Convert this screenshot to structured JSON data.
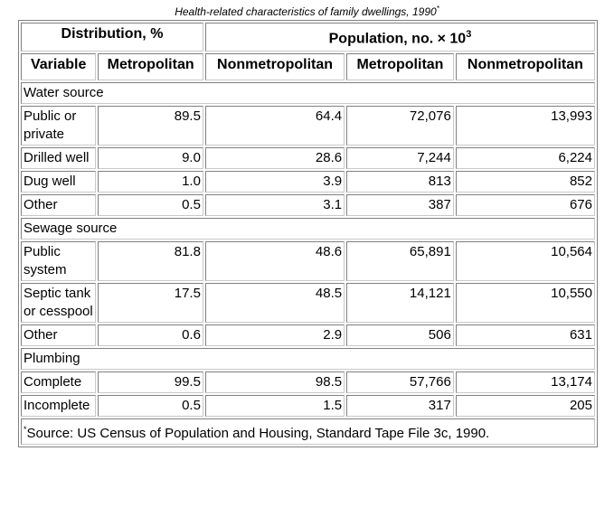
{
  "caption": {
    "text": "Health-related characteristics of family dwellings, 1990",
    "footnote_mark": "*"
  },
  "header": {
    "group1": "Distribution, %",
    "group2_prefix": "Population, no. × 10",
    "group2_exponent": "3",
    "col_variable": "Variable",
    "col_metro_1": "Metropolitan",
    "col_nonmetro_1": "Nonmetropolitan",
    "col_metro_2": "Metropolitan",
    "col_nonmetro_2": "Nonmetropolitan"
  },
  "sections": [
    {
      "title": "Water source",
      "rows": [
        {
          "variable": "Public or private",
          "dist_metro": "89.5",
          "dist_nonmetro": "64.4",
          "pop_metro": "72,076",
          "pop_nonmetro": "13,993"
        },
        {
          "variable": "Drilled well",
          "dist_metro": "9.0",
          "dist_nonmetro": "28.6",
          "pop_metro": "7,244",
          "pop_nonmetro": "6,224"
        },
        {
          "variable": "Dug well",
          "dist_metro": "1.0",
          "dist_nonmetro": "3.9",
          "pop_metro": "813",
          "pop_nonmetro": "852"
        },
        {
          "variable": "Other",
          "dist_metro": "0.5",
          "dist_nonmetro": "3.1",
          "pop_metro": "387",
          "pop_nonmetro": "676"
        }
      ]
    },
    {
      "title": "Sewage source",
      "rows": [
        {
          "variable": "Public system",
          "dist_metro": "81.8",
          "dist_nonmetro": "48.6",
          "pop_metro": "65,891",
          "pop_nonmetro": "10,564"
        },
        {
          "variable": "Septic tank or cesspool",
          "dist_metro": "17.5",
          "dist_nonmetro": "48.5",
          "pop_metro": "14,121",
          "pop_nonmetro": "10,550"
        },
        {
          "variable": "Other",
          "dist_metro": "0.6",
          "dist_nonmetro": "2.9",
          "pop_metro": "506",
          "pop_nonmetro": "631"
        }
      ]
    },
    {
      "title": "Plumbing",
      "rows": [
        {
          "variable": "Complete",
          "dist_metro": "99.5",
          "dist_nonmetro": "98.5",
          "pop_metro": "57,766",
          "pop_nonmetro": "13,174"
        },
        {
          "variable": "Incomplete",
          "dist_metro": "0.5",
          "dist_nonmetro": "1.5",
          "pop_metro": "317",
          "pop_nonmetro": "205"
        }
      ]
    }
  ],
  "footnote": {
    "mark": "*",
    "text": "Source: US Census of Population and Housing, Standard Tape File 3c, 1990."
  }
}
